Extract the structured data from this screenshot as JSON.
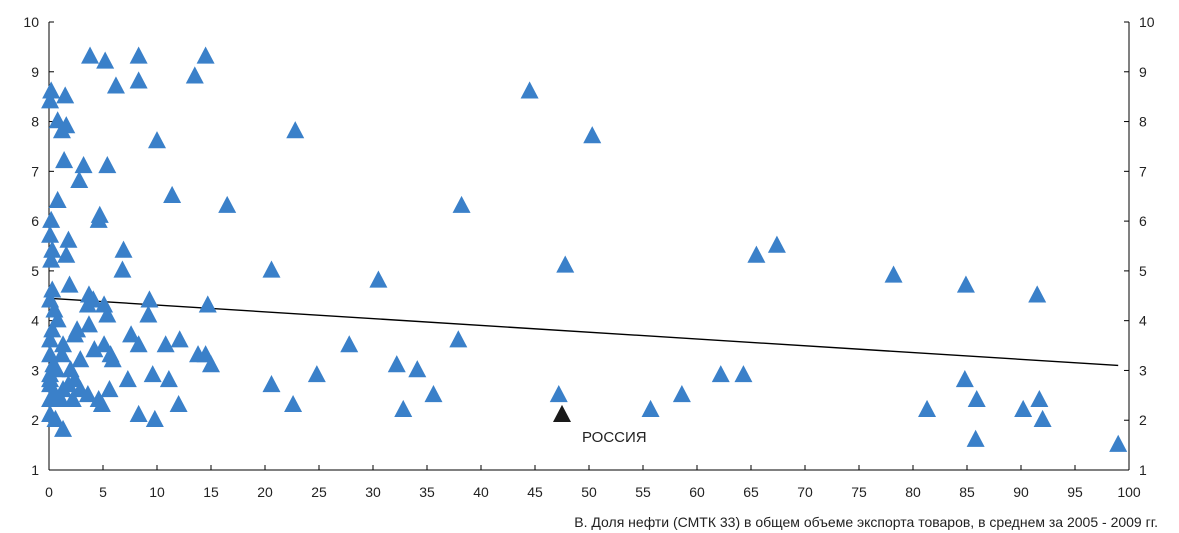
{
  "chart_data": {
    "type": "scatter",
    "xlabel": "B. Доля нефти (СМТК 33) в общем объеме экспорта товаров, в среднем за 2005 - 2009 гг.",
    "ylabel": "",
    "xlim": [
      0,
      100
    ],
    "ylim": [
      1,
      10
    ],
    "x_ticks": [
      0,
      5,
      10,
      15,
      20,
      25,
      30,
      35,
      40,
      45,
      50,
      55,
      60,
      65,
      70,
      75,
      80,
      85,
      90,
      95,
      100
    ],
    "y_ticks": [
      1,
      2,
      3,
      4,
      5,
      6,
      7,
      8,
      9,
      10
    ],
    "grid": false,
    "colors": {
      "points": "#3a80c9",
      "highlight": "#1a1a1a",
      "trend": "#000000",
      "axis": "#000000"
    },
    "trendline": {
      "x": [
        0,
        99
      ],
      "y": [
        4.45,
        3.1
      ]
    },
    "annotations": [
      {
        "label": "РОССИЯ",
        "x": 47.5,
        "y": 2.1
      }
    ],
    "series": [
      {
        "marker": "triangle",
        "points": [
          [
            3.8,
            9.3
          ],
          [
            5.2,
            9.2
          ],
          [
            8.3,
            9.3
          ],
          [
            14.5,
            9.3
          ],
          [
            13.5,
            8.9
          ],
          [
            8.3,
            8.8
          ],
          [
            6.2,
            8.7
          ],
          [
            0.2,
            8.6
          ],
          [
            0.1,
            8.4
          ],
          [
            1.5,
            8.5
          ],
          [
            0.8,
            8.0
          ],
          [
            1.2,
            7.8
          ],
          [
            1.6,
            7.9
          ],
          [
            10.0,
            7.6
          ],
          [
            22.8,
            7.8
          ],
          [
            44.5,
            8.6
          ],
          [
            50.3,
            7.7
          ],
          [
            1.4,
            7.2
          ],
          [
            3.2,
            7.1
          ],
          [
            5.4,
            7.1
          ],
          [
            2.8,
            6.8
          ],
          [
            11.4,
            6.5
          ],
          [
            16.5,
            6.3
          ],
          [
            0.8,
            6.4
          ],
          [
            4.7,
            6.1
          ],
          [
            4.6,
            6.0
          ],
          [
            0.2,
            6.0
          ],
          [
            38.2,
            6.3
          ],
          [
            0.1,
            5.7
          ],
          [
            1.8,
            5.6
          ],
          [
            0.3,
            5.4
          ],
          [
            1.6,
            5.3
          ],
          [
            0.2,
            5.2
          ],
          [
            6.9,
            5.4
          ],
          [
            6.8,
            5.0
          ],
          [
            20.6,
            5.0
          ],
          [
            47.8,
            5.1
          ],
          [
            65.5,
            5.3
          ],
          [
            67.4,
            5.5
          ],
          [
            78.2,
            4.9
          ],
          [
            84.9,
            4.7
          ],
          [
            30.5,
            4.8
          ],
          [
            0.3,
            4.6
          ],
          [
            1.9,
            4.7
          ],
          [
            0.1,
            4.4
          ],
          [
            3.7,
            4.5
          ],
          [
            4.1,
            4.4
          ],
          [
            3.6,
            4.3
          ],
          [
            5.1,
            4.3
          ],
          [
            9.3,
            4.4
          ],
          [
            14.7,
            4.3
          ],
          [
            0.5,
            4.2
          ],
          [
            0.8,
            4.0
          ],
          [
            5.4,
            4.1
          ],
          [
            9.2,
            4.1
          ],
          [
            91.5,
            4.5
          ],
          [
            3.7,
            3.9
          ],
          [
            0.3,
            3.8
          ],
          [
            2.6,
            3.8
          ],
          [
            2.4,
            3.7
          ],
          [
            0.1,
            3.6
          ],
          [
            1.3,
            3.5
          ],
          [
            4.2,
            3.4
          ],
          [
            5.1,
            3.5
          ],
          [
            7.6,
            3.7
          ],
          [
            8.3,
            3.5
          ],
          [
            10.8,
            3.5
          ],
          [
            12.1,
            3.6
          ],
          [
            13.8,
            3.3
          ],
          [
            14.5,
            3.3
          ],
          [
            15.0,
            3.1
          ],
          [
            37.9,
            3.6
          ],
          [
            27.8,
            3.5
          ],
          [
            0.1,
            3.3
          ],
          [
            0.4,
            3.1
          ],
          [
            1.2,
            3.3
          ],
          [
            2.0,
            3.0
          ],
          [
            2.9,
            3.2
          ],
          [
            5.7,
            3.3
          ],
          [
            5.9,
            3.2
          ],
          [
            0.1,
            2.9
          ],
          [
            0.1,
            2.8
          ],
          [
            0.7,
            3.0
          ],
          [
            2.4,
            2.8
          ],
          [
            7.3,
            2.8
          ],
          [
            9.6,
            2.9
          ],
          [
            11.1,
            2.8
          ],
          [
            20.6,
            2.7
          ],
          [
            24.8,
            2.9
          ],
          [
            32.2,
            3.1
          ],
          [
            34.1,
            3.0
          ],
          [
            0.1,
            2.7
          ],
          [
            1.3,
            2.6
          ],
          [
            1.8,
            2.7
          ],
          [
            2.9,
            2.6
          ],
          [
            0.5,
            2.5
          ],
          [
            3.6,
            2.5
          ],
          [
            5.6,
            2.6
          ],
          [
            0.1,
            2.4
          ],
          [
            1.1,
            2.4
          ],
          [
            2.2,
            2.4
          ],
          [
            4.6,
            2.4
          ],
          [
            4.9,
            2.3
          ],
          [
            12.0,
            2.3
          ],
          [
            22.6,
            2.3
          ],
          [
            35.6,
            2.5
          ],
          [
            47.2,
            2.5
          ],
          [
            58.6,
            2.5
          ],
          [
            62.2,
            2.9
          ],
          [
            64.3,
            2.9
          ],
          [
            84.8,
            2.8
          ],
          [
            85.9,
            2.4
          ],
          [
            91.7,
            2.4
          ],
          [
            0.1,
            2.1
          ],
          [
            0.6,
            2.0
          ],
          [
            8.3,
            2.1
          ],
          [
            9.8,
            2.0
          ],
          [
            32.8,
            2.2
          ],
          [
            55.7,
            2.2
          ],
          [
            81.3,
            2.2
          ],
          [
            90.2,
            2.2
          ],
          [
            92.0,
            2.0
          ],
          [
            1.3,
            1.8
          ],
          [
            85.8,
            1.6
          ],
          [
            99.0,
            1.5
          ]
        ]
      }
    ]
  }
}
